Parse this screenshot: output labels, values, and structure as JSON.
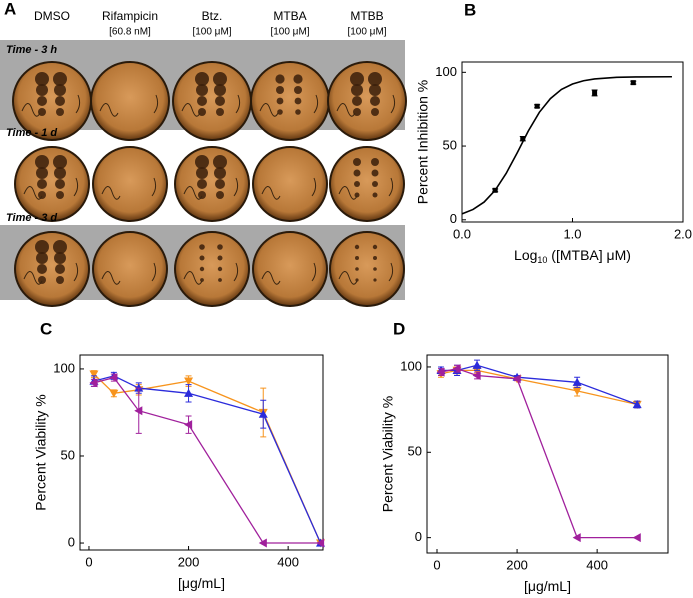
{
  "photo_panel": {
    "panel": "A",
    "columns": [
      "DMSO",
      "Rifampicin",
      "Btz.",
      "MTBA",
      "MTBB"
    ],
    "doses": [
      null,
      "[60.8 nM]",
      "[100 μM]",
      "[100 μM]",
      "[100 μM]"
    ],
    "rows": [
      "Time - 3 h",
      "Time - 1 d",
      "Time - 3 d"
    ]
  },
  "chart_data": [
    {
      "type": "scatter",
      "panel": "B",
      "ylabel": "Percent Inhibition %",
      "xlabel": [
        "Log",
        "10",
        " ([MTBA] μM)"
      ],
      "x": [
        0.3,
        0.55,
        0.68,
        1.2,
        1.55
      ],
      "series": [
        {
          "color": "#000000",
          "marker": "square",
          "values": [
            20,
            55,
            77,
            86,
            93
          ],
          "errors": [
            1,
            1.5,
            1,
            2,
            1
          ]
        }
      ],
      "curve": {
        "color": "#000000",
        "x": [
          0,
          0.1,
          0.2,
          0.3,
          0.4,
          0.5,
          0.6,
          0.7,
          0.8,
          0.9,
          1.0,
          1.1,
          1.2,
          1.4,
          1.6,
          1.9
        ],
        "y": [
          4,
          7,
          12,
          20,
          31.5,
          45.5,
          60.2,
          72.9,
          82.2,
          88.4,
          92.1,
          94.3,
          95.5,
          96.6,
          96.9,
          97
        ]
      },
      "xlim": [
        0,
        2
      ],
      "ylim": [
        -1.5,
        107
      ],
      "xticks": [
        {
          "value": 0,
          "label": "0.0"
        },
        {
          "value": 1,
          "label": "1.0"
        },
        {
          "value": 2,
          "label": "2.0"
        }
      ],
      "yticks": [
        0,
        50,
        100
      ]
    },
    {
      "type": "line",
      "panel": "C",
      "ylabel": "Percent Viability %",
      "xlabel": [
        "[μg/mL]"
      ],
      "x": [
        10,
        50,
        100,
        200,
        350,
        465
      ],
      "series": [
        {
          "color": "#f7941d",
          "marker": "triangle-down",
          "values": [
            97,
            86,
            88,
            93,
            75,
            0
          ],
          "errors": [
            2,
            2,
            3,
            3,
            14,
            1
          ]
        },
        {
          "color": "#2b2bdb",
          "marker": "triangle-up",
          "values": [
            93,
            96,
            89,
            86,
            74,
            0
          ],
          "errors": [
            3,
            2,
            3,
            5,
            8,
            0
          ]
        },
        {
          "color": "#a0209c",
          "marker": "triangle-left",
          "values": [
            92,
            95,
            76,
            68,
            0,
            0
          ],
          "errors": [
            2,
            2,
            13,
            5,
            0,
            0
          ]
        }
      ],
      "xlim": [
        -18,
        470
      ],
      "ylim": [
        -4,
        108
      ],
      "xticks": [
        0,
        200,
        400
      ],
      "yticks": [
        0,
        50,
        100
      ]
    },
    {
      "type": "line",
      "panel": "D",
      "ylabel": "Percent Viability %",
      "xlabel": [
        "[μg/mL]"
      ],
      "x": [
        10,
        50,
        100,
        200,
        350,
        500
      ],
      "series": [
        {
          "color": "#f7941d",
          "marker": "triangle-down",
          "values": [
            96,
            98,
            98,
            93,
            86,
            78
          ],
          "errors": [
            2,
            2,
            2,
            1,
            3,
            2
          ]
        },
        {
          "color": "#2b2bdb",
          "marker": "triangle-up",
          "values": [
            98,
            98,
            101,
            94,
            91,
            78
          ],
          "errors": [
            2,
            3,
            3,
            1,
            3,
            2
          ]
        },
        {
          "color": "#a0209c",
          "marker": "triangle-left",
          "values": [
            97,
            99,
            95,
            93,
            0,
            0
          ],
          "errors": [
            2,
            2,
            2,
            1,
            0,
            0
          ]
        }
      ],
      "xlim": [
        -25,
        577
      ],
      "ylim": [
        -9,
        107
      ],
      "xticks": [
        0,
        200,
        400
      ],
      "yticks": [
        0,
        50,
        100
      ]
    }
  ]
}
